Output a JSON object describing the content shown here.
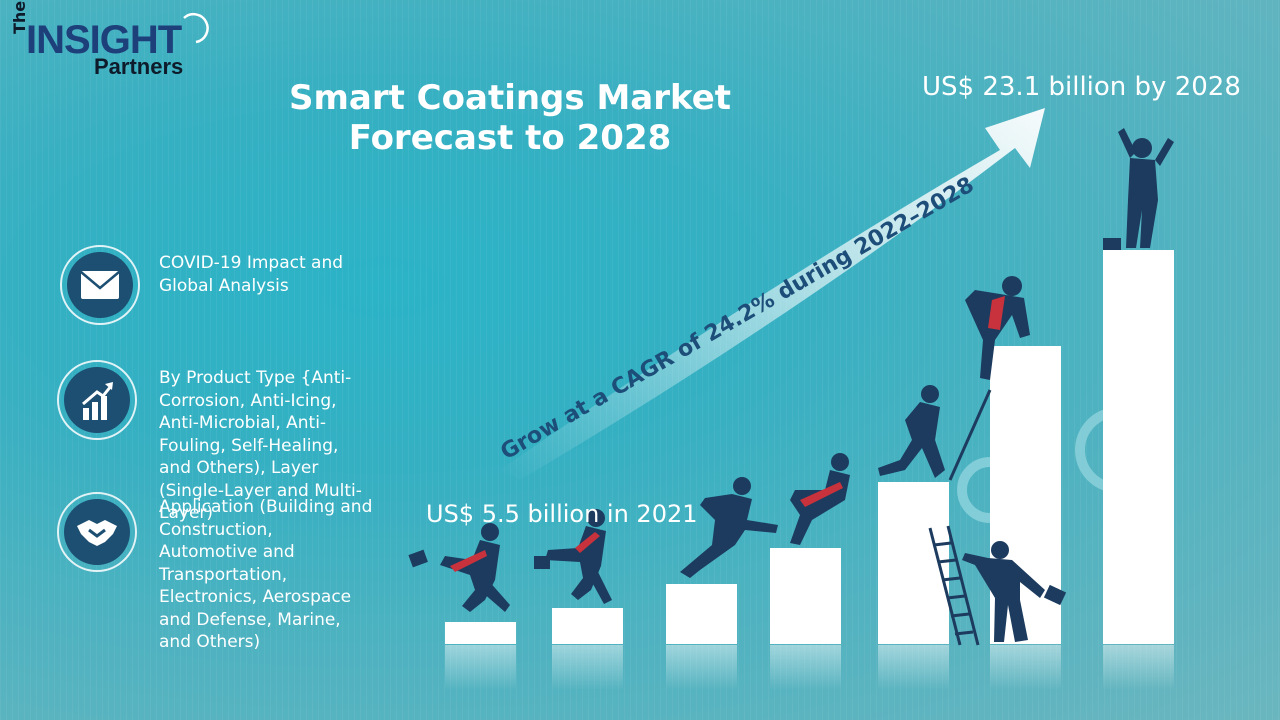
{
  "brand": {
    "the": "The",
    "insight": "INSIGHT",
    "partners": "Partners"
  },
  "title": {
    "line1": "Smart Coatings Market",
    "line2": "Forecast to 2028"
  },
  "market": {
    "value_2028": "US$ 23.1 billion by 2028",
    "value_2021": "US$ 5.5 billion in 2021",
    "cagr_text": "Grow at a CAGR of 24.2% during 2022–2028"
  },
  "bullets": [
    {
      "icon": "envelope-icon",
      "text": "COVID-19 Impact and Global Analysis"
    },
    {
      "icon": "growth-chart-icon",
      "text": "By Product Type {Anti-Corrosion, Anti-Icing, Anti-Microbial, Anti-Fouling, Self-Healing, and Others), Layer (Single-Layer and Multi-Layer)"
    },
    {
      "icon": "handshake-icon",
      "text": "Application (Building and Construction, Automotive and Transportation, Electronics, Aerospace and Defense, Marine, and Others)"
    }
  ],
  "colors": {
    "navy": "#1c3b5e",
    "accent_red": "#c8323c",
    "icon_bg": "#1c4f72",
    "text": "#ffffff"
  }
}
